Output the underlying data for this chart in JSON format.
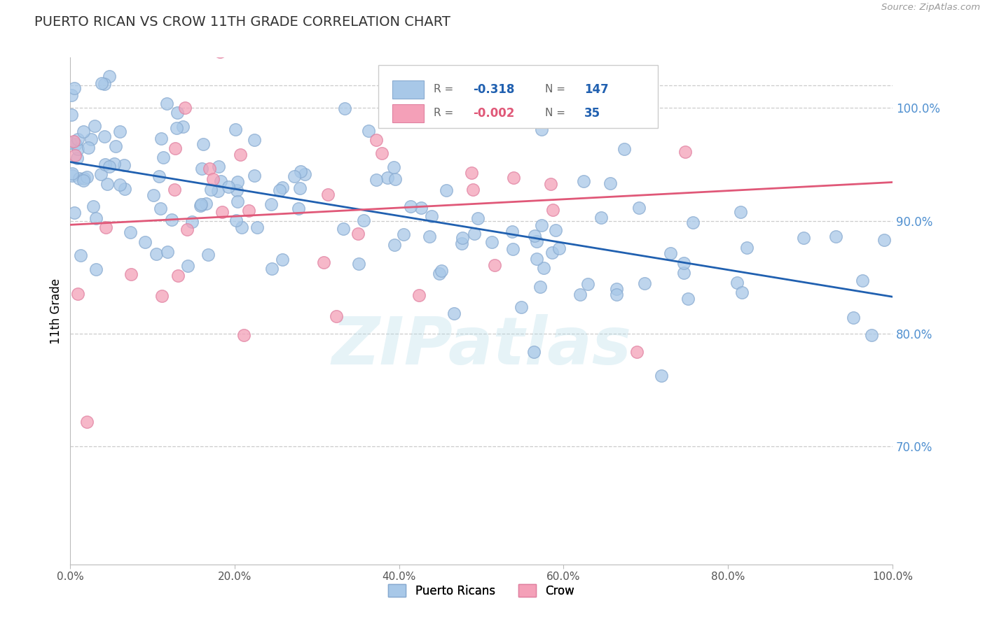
{
  "title": "PUERTO RICAN VS CROW 11TH GRADE CORRELATION CHART",
  "source": "Source: ZipAtlas.com",
  "ylabel": "11th Grade",
  "blue_R": -0.318,
  "blue_N": 147,
  "pink_R": -0.002,
  "pink_N": 35,
  "blue_color": "#a8c8e8",
  "pink_color": "#f4a0b8",
  "blue_edge_color": "#88aad0",
  "pink_edge_color": "#e080a0",
  "blue_line_color": "#2060b0",
  "pink_line_color": "#e05878",
  "watermark": "ZIPatlas",
  "legend_label_blue": "Puerto Ricans",
  "legend_label_pink": "Crow",
  "xlim": [
    0.0,
    1.0
  ],
  "ylim": [
    0.595,
    1.045
  ],
  "blue_seed": 42,
  "pink_seed": 123,
  "blue_trend_start": 0.955,
  "blue_trend_end": 0.83,
  "pink_trend_y": 0.93
}
